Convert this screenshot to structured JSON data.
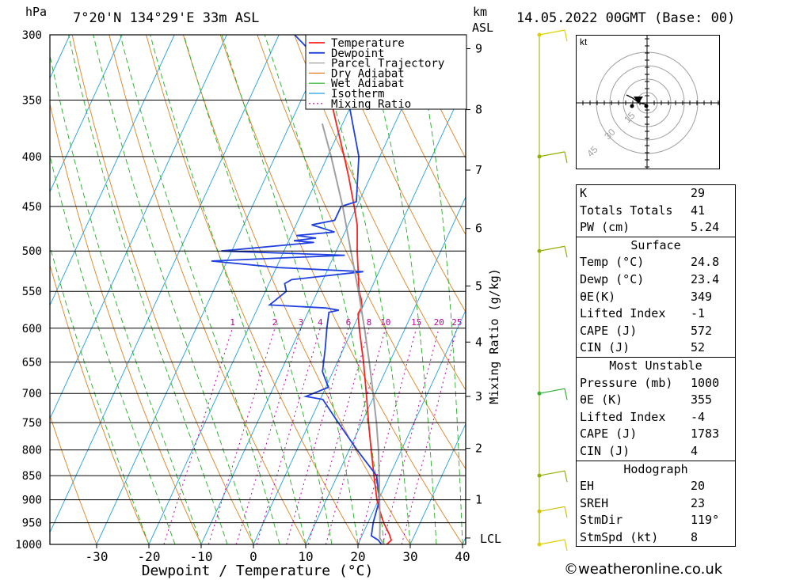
{
  "header": {
    "location": "7°20'N  134°29'E  33m  ASL",
    "datetime": "14.05.2022  00GMT  (Base: 00)",
    "pressure_unit": "hPa",
    "height_unit_line1": "km",
    "height_unit_line2": "ASL"
  },
  "footer": {
    "credit": "©weatheronline.co.uk"
  },
  "colors": {
    "temperature": "#ff2020",
    "dewpoint": "#2040e0",
    "parcel": "#a0a0a0",
    "dry_adiabat": "#e08020",
    "wet_adiabat": "#20b020",
    "isotherm": "#20a0e0",
    "mixing_ratio": "#c000a0"
  },
  "chart_data": {
    "type": "line",
    "title": "",
    "xlabel": "Dewpoint / Temperature (°C)",
    "ylabel": "hPa",
    "right_axis_label": "Mixing Ratio (g/kg)",
    "xlim": [
      -40,
      40
    ],
    "ylim": [
      1000,
      300
    ],
    "x_ticks": [
      -30,
      -20,
      -10,
      0,
      10,
      20,
      30,
      40
    ],
    "x_tick_labels": [
      "-30",
      "-20",
      "-10",
      "0",
      "10",
      "20",
      "30",
      "40"
    ],
    "pressure_levels": [
      300,
      350,
      400,
      450,
      500,
      550,
      600,
      650,
      700,
      750,
      800,
      850,
      900,
      950,
      1000
    ],
    "pressure_labels": [
      "300",
      "350",
      "400",
      "450",
      "500",
      "550",
      "600",
      "650",
      "700",
      "750",
      "800",
      "850",
      "900",
      "950",
      "1000"
    ],
    "height_ticks": [
      {
        "km": 1,
        "p": 900
      },
      {
        "km": 2,
        "p": 797
      },
      {
        "km": 3,
        "p": 705
      },
      {
        "km": 4,
        "p": 620
      },
      {
        "km": 5,
        "p": 543
      },
      {
        "km": 6,
        "p": 474
      },
      {
        "km": 7,
        "p": 413
      },
      {
        "km": 8,
        "p": 358
      },
      {
        "km": 9,
        "p": 310
      }
    ],
    "lcl_label": "LCL",
    "lcl_pressure": 985,
    "mixing_ratio_labels": [
      "1",
      "2",
      "3",
      "4",
      "6",
      "8",
      "10",
      "15",
      "20",
      "25"
    ],
    "mixing_ratio_values": [
      1,
      2,
      3,
      4,
      6,
      8,
      10,
      15,
      20,
      25
    ],
    "legend": [
      "Temperature",
      "Dewpoint",
      "Parcel Trajectory",
      "Dry Adiabat",
      "Wet Adiabat",
      "Isotherm",
      "Mixing Ratio"
    ],
    "legend_position": "top-right",
    "series": [
      {
        "name": "Temperature",
        "points": [
          [
            1000,
            25.5
          ],
          [
            990,
            26.0
          ],
          [
            975,
            25.0
          ],
          [
            950,
            23.0
          ],
          [
            925,
            21.3
          ],
          [
            900,
            19.7
          ],
          [
            850,
            17.0
          ],
          [
            800,
            14.2
          ],
          [
            750,
            11.3
          ],
          [
            700,
            8.3
          ],
          [
            650,
            5.0
          ],
          [
            600,
            1.2
          ],
          [
            580,
            -0.3
          ],
          [
            570,
            -0.2
          ],
          [
            560,
            -1.0
          ],
          [
            550,
            -2.1
          ],
          [
            530,
            -3.6
          ],
          [
            500,
            -6.0
          ],
          [
            480,
            -7.5
          ],
          [
            470,
            -8.3
          ],
          [
            450,
            -10.5
          ],
          [
            420,
            -14.1
          ],
          [
            400,
            -16.8
          ],
          [
            370,
            -21.2
          ],
          [
            350,
            -24.3
          ],
          [
            330,
            -28.0
          ],
          [
            300,
            -33.5
          ]
        ]
      },
      {
        "name": "Dewpoint",
        "points": [
          [
            1000,
            24.5
          ],
          [
            990,
            23.5
          ],
          [
            980,
            21.8
          ],
          [
            950,
            21.0
          ],
          [
            900,
            20.2
          ],
          [
            850,
            17.5
          ],
          [
            800,
            11.5
          ],
          [
            750,
            5.5
          ],
          [
            710,
            0.5
          ],
          [
            705,
            -3.0
          ],
          [
            690,
            0.5
          ],
          [
            665,
            -2.0
          ],
          [
            630,
            -3.5
          ],
          [
            600,
            -5.0
          ],
          [
            578,
            -6.0
          ],
          [
            575,
            -4.3
          ],
          [
            572,
            -7.0
          ],
          [
            568,
            -18.0
          ],
          [
            550,
            -16.0
          ],
          [
            540,
            -17.0
          ],
          [
            535,
            -16.0
          ],
          [
            525,
            -3.0
          ],
          [
            520,
            -19.5
          ],
          [
            512,
            -33.0
          ],
          [
            505,
            -8.0
          ],
          [
            500,
            -32.0
          ],
          [
            490,
            -15.0
          ],
          [
            488,
            -19.0
          ],
          [
            485,
            -15.0
          ],
          [
            482,
            -19.0
          ],
          [
            478,
            -12.0
          ],
          [
            470,
            -17.0
          ],
          [
            465,
            -13.0
          ],
          [
            450,
            -13.0
          ],
          [
            445,
            -10.5
          ],
          [
            400,
            -14.0
          ],
          [
            350,
            -21.0
          ],
          [
            330,
            -26.0
          ],
          [
            300,
            -37.0
          ]
        ]
      },
      {
        "name": "Parcel Trajectory",
        "points": [
          [
            1000,
            25.0
          ],
          [
            985,
            23.6
          ],
          [
            950,
            22.3
          ],
          [
            900,
            20.2
          ],
          [
            850,
            18.0
          ],
          [
            800,
            15.6
          ],
          [
            750,
            12.8
          ],
          [
            700,
            9.6
          ],
          [
            650,
            6.1
          ],
          [
            600,
            2.2
          ],
          [
            550,
            -2.2
          ],
          [
            500,
            -7.2
          ],
          [
            450,
            -12.7
          ],
          [
            400,
            -19.3
          ],
          [
            370,
            -23.9
          ]
        ]
      }
    ]
  },
  "hodograph": {
    "unit_label": "kt",
    "ring_labels": [
      "15",
      "30",
      "45"
    ],
    "storm_dir_deg": 119,
    "storm_speed_kt": 8
  },
  "wind_profile_label": "wind barbs",
  "indices": {
    "k": {
      "label": "K",
      "value": "29"
    },
    "tt": {
      "label": "Totals Totals",
      "value": "41"
    },
    "pw": {
      "label": "PW (cm)",
      "value": "5.24"
    },
    "surface": {
      "title": "Surface",
      "temp": {
        "label": "Temp (°C)",
        "value": "24.8"
      },
      "dewp": {
        "label": "Dewp (°C)",
        "value": "23.4"
      },
      "thetae": {
        "label": "θE(K)",
        "value": "349"
      },
      "li": {
        "label": "Lifted Index",
        "value": "-1"
      },
      "cape": {
        "label": "CAPE (J)",
        "value": "572"
      },
      "cin": {
        "label": "CIN (J)",
        "value": "52"
      }
    },
    "mu": {
      "title": "Most Unstable",
      "pressure": {
        "label": "Pressure (mb)",
        "value": "1000"
      },
      "thetae": {
        "label": "θE (K)",
        "value": "355"
      },
      "li": {
        "label": "Lifted Index",
        "value": "-4"
      },
      "cape": {
        "label": "CAPE (J)",
        "value": "1783"
      },
      "cin": {
        "label": "CIN (J)",
        "value": "4"
      }
    },
    "hodo": {
      "title": "Hodograph",
      "eh": {
        "label": "EH",
        "value": "20"
      },
      "sreh": {
        "label": "SREH",
        "value": "23"
      },
      "stmdir": {
        "label": "StmDir",
        "value": "119°"
      },
      "stmspd": {
        "label": "StmSpd (kt)",
        "value": "8"
      }
    }
  }
}
